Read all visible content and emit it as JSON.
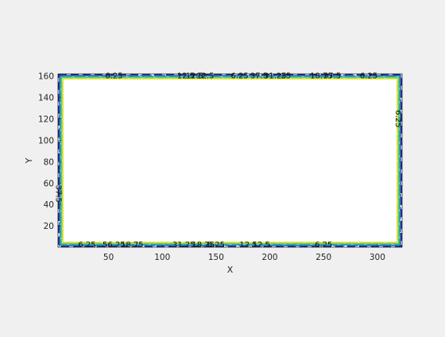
{
  "chart_data": {
    "type": "contour",
    "xlabel": "X",
    "ylabel": "Y",
    "xlim": [
      3,
      323
    ],
    "ylim": [
      0,
      162
    ],
    "x_ticks": [
      50,
      100,
      150,
      200,
      250,
      300
    ],
    "y_ticks": [
      20,
      40,
      60,
      80,
      100,
      120,
      140,
      160
    ],
    "grid": false,
    "legend": "none",
    "colormap": [
      "#1f1f8f",
      "#2b4fd0",
      "#1e90b8",
      "#21b39a",
      "#5cc86a",
      "#b8d84a",
      "#e6e23c"
    ],
    "contour_labels": [
      {
        "text": "6.25",
        "x": 55,
        "y": 161
      },
      {
        "text": "12.5",
        "x": 122,
        "y": 161
      },
      {
        "text": "12.5",
        "x": 130,
        "y": 161
      },
      {
        "text": "12.5",
        "x": 140,
        "y": 161
      },
      {
        "text": "6.25",
        "x": 172,
        "y": 161
      },
      {
        "text": "37.5",
        "x": 190,
        "y": 161
      },
      {
        "text": "31.25",
        "x": 205,
        "y": 161
      },
      {
        "text": "25",
        "x": 215,
        "y": 161
      },
      {
        "text": "18.75",
        "x": 248,
        "y": 161
      },
      {
        "text": "37.5",
        "x": 258,
        "y": 161
      },
      {
        "text": "6.25",
        "x": 292,
        "y": 161
      },
      {
        "text": "6.25",
        "x": 30,
        "y": 3
      },
      {
        "text": "56.25",
        "x": 55,
        "y": 3
      },
      {
        "text": "18.75",
        "x": 72,
        "y": 3
      },
      {
        "text": "31.25",
        "x": 120,
        "y": 3
      },
      {
        "text": "18.75",
        "x": 138,
        "y": 3
      },
      {
        "text": "6.25",
        "x": 150,
        "y": 3
      },
      {
        "text": "12.5",
        "x": 180,
        "y": 3
      },
      {
        "text": "12.5",
        "x": 192,
        "y": 3
      },
      {
        "text": "6.25",
        "x": 250,
        "y": 3
      },
      {
        "text": "37.5",
        "x": 4,
        "y": 50
      },
      {
        "text": "6.25",
        "x": 320,
        "y": 120
      }
    ]
  }
}
